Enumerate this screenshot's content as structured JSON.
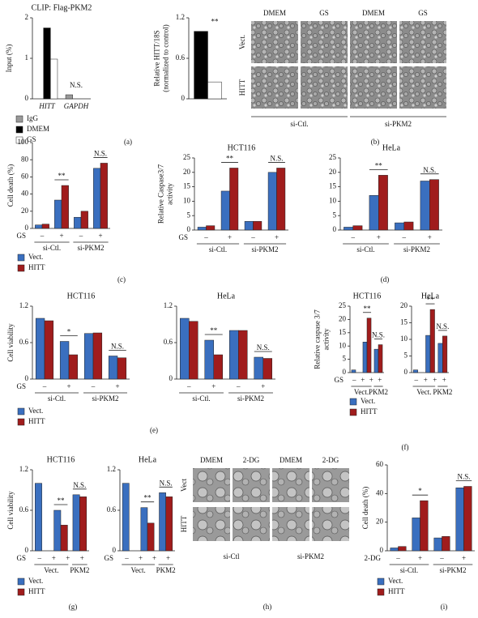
{
  "chart_data": [
    {
      "type": "bar",
      "title": "CLIP: Flag-PKM2",
      "ylabel": [
        "Input (%)"
      ],
      "categories": [
        "HITT",
        "GAPDH"
      ],
      "series": [
        {
          "name": "IgG",
          "color": "#999999",
          "values": [
            null,
            0.1
          ]
        },
        {
          "name": "DMEM",
          "color": "#000000",
          "values": [
            1.75,
            null
          ]
        },
        {
          "name": "GS",
          "color": "#ffffff",
          "values": [
            0.98,
            null
          ]
        }
      ],
      "ylim": [
        0,
        2
      ],
      "yticks": [
        0,
        1,
        2
      ],
      "annotations": [
        "N.S."
      ]
    },
    {
      "type": "bar",
      "ylabel": [
        "Relative HITT/18S",
        "(normalized to control)"
      ],
      "categories": [
        null
      ],
      "series": [
        {
          "color": "#000000",
          "values": [
            1.0
          ]
        },
        {
          "color": "#ffffff",
          "values": [
            0.25
          ]
        }
      ],
      "ylim": [
        0,
        1.2
      ],
      "yticks": [
        0,
        0.6,
        1.2
      ],
      "annotations": [
        "**"
      ]
    },
    {
      "type": "bar",
      "ylabel": [
        "Cell death (%)"
      ],
      "x_row_label": "GS",
      "categories": [
        "–",
        "+",
        "–",
        "+"
      ],
      "group_labels": [
        "si-Ctl.",
        "si-PKM2"
      ],
      "series": [
        {
          "name": "Vect.",
          "color": "#3a6fbf",
          "values": [
            4,
            33,
            13,
            70
          ]
        },
        {
          "name": "HITT",
          "color": "#a01c1c",
          "values": [
            5,
            50,
            20,
            76
          ]
        }
      ],
      "ylim": [
        0,
        100
      ],
      "yticks": [
        0,
        20,
        40,
        60,
        80,
        100
      ],
      "annotations": [
        "**",
        "N.S."
      ]
    },
    {
      "type": "bar",
      "title": "HCT116",
      "ylabel": [
        "Relative Caspase3/7",
        "activity"
      ],
      "x_row_label": "GS",
      "categories": [
        "–",
        "+",
        "–",
        "+"
      ],
      "group_labels": [
        "si-Ctl.",
        "si-PKM2"
      ],
      "series": [
        {
          "color": "#3a6fbf",
          "values": [
            1,
            13.5,
            3,
            20
          ]
        },
        {
          "color": "#a01c1c",
          "values": [
            1.5,
            21.5,
            3,
            21.5
          ]
        }
      ],
      "ylim": [
        0,
        25
      ],
      "yticks": [
        0,
        5,
        10,
        15,
        20,
        25
      ],
      "annotations": [
        "**",
        "N.S."
      ]
    },
    {
      "type": "bar",
      "title": "HeLa",
      "categories": [
        "–",
        "+",
        "–",
        "+"
      ],
      "group_labels": [
        "si-Ctl.",
        "si-PKM2"
      ],
      "series": [
        {
          "color": "#3a6fbf",
          "values": [
            1,
            12,
            2.5,
            17
          ]
        },
        {
          "color": "#a01c1c",
          "values": [
            1.5,
            19,
            2.8,
            17.5
          ]
        }
      ],
      "ylim": [
        0,
        25
      ],
      "yticks": [
        0,
        5,
        10,
        15,
        20,
        25
      ],
      "annotations": [
        "**",
        "N.S."
      ]
    },
    {
      "type": "bar",
      "title": "HCT116",
      "ylabel": [
        "Cell viability"
      ],
      "x_row_label": "GS",
      "categories": [
        "–",
        "+",
        "–",
        "+"
      ],
      "group_labels": [
        "si-Ctl.",
        "si-PKM2"
      ],
      "series": [
        {
          "name": "Vect.",
          "color": "#3a6fbf",
          "values": [
            1.0,
            0.62,
            0.75,
            0.38
          ]
        },
        {
          "name": "HITT",
          "color": "#a01c1c",
          "values": [
            0.96,
            0.4,
            0.76,
            0.35
          ]
        }
      ],
      "ylim": [
        0,
        1.2
      ],
      "yticks": [
        0,
        0.6,
        1.2
      ],
      "annotations": [
        "*",
        "N.S."
      ]
    },
    {
      "type": "bar",
      "title": "HeLa",
      "categories": [
        "–",
        "+",
        "–",
        "+"
      ],
      "group_labels": [
        "si-Ctl.",
        "si-PKM2"
      ],
      "series": [
        {
          "color": "#3a6fbf",
          "values": [
            1.0,
            0.64,
            0.8,
            0.36
          ]
        },
        {
          "color": "#a01c1c",
          "values": [
            0.95,
            0.4,
            0.8,
            0.34
          ]
        }
      ],
      "ylim": [
        0,
        1.2
      ],
      "yticks": [
        0,
        0.6,
        1.2
      ],
      "annotations": [
        "**",
        "N.S."
      ]
    },
    {
      "type": "bar",
      "title": "HCT116",
      "ylabel": [
        "Relative caspase 3/7",
        "activity"
      ],
      "x_row_label": "GS",
      "gs_signs": [
        "–",
        "+",
        "+",
        "+"
      ],
      "categories": [
        null,
        null,
        null
      ],
      "group_labels": [
        "Vect.",
        "PKM2"
      ],
      "series": [
        {
          "name": "Vect.",
          "color": "#3a6fbf",
          "values": [
            1,
            11.5,
            8.8
          ]
        },
        {
          "name": "HITT",
          "color": "#a01c1c",
          "values": [
            null,
            20.5,
            10.5
          ]
        }
      ],
      "ylim": [
        0,
        25
      ],
      "yticks": [
        0,
        5,
        10,
        15,
        20,
        25
      ],
      "annotations": [
        "**",
        "N.S."
      ]
    },
    {
      "type": "bar",
      "title": "HeLa",
      "gs_signs": [
        "–",
        "+",
        "+",
        "+"
      ],
      "categories": [
        null,
        null,
        null
      ],
      "group_labels": [
        "Vect.",
        "PKM2"
      ],
      "series": [
        {
          "color": "#3a6fbf",
          "values": [
            0.8,
            11.2,
            8.8
          ]
        },
        {
          "color": "#a01c1c",
          "values": [
            null,
            19,
            11
          ]
        }
      ],
      "ylim": [
        0,
        20
      ],
      "yticks": [
        0,
        5,
        10,
        15,
        20
      ],
      "annotations": [
        "**",
        "N.S."
      ]
    },
    {
      "type": "bar",
      "title": "HCT116",
      "ylabel": [
        "Cell viability"
      ],
      "x_row_label": "GS",
      "gs_signs": [
        "–",
        "+",
        "+",
        "+"
      ],
      "categories": [
        null,
        null,
        null
      ],
      "group_labels": [
        "Vect.",
        "PKM2"
      ],
      "series": [
        {
          "name": "Vect.",
          "color": "#3a6fbf",
          "values": [
            1.0,
            0.6,
            0.83
          ]
        },
        {
          "name": "HITT",
          "color": "#a01c1c",
          "values": [
            null,
            0.38,
            0.8
          ]
        }
      ],
      "ylim": [
        0,
        1.2
      ],
      "yticks": [
        0,
        0.6,
        1.2
      ],
      "annotations": [
        "**",
        "N.S."
      ]
    },
    {
      "type": "bar",
      "title": "HeLa",
      "x_row_label": "GS",
      "gs_signs": [
        "–",
        "+",
        "+",
        "+"
      ],
      "categories": [
        null,
        null,
        null
      ],
      "group_labels": [
        "Vect.",
        "PKM2"
      ],
      "series": [
        {
          "color": "#3a6fbf",
          "values": [
            1.0,
            0.64,
            0.86
          ]
        },
        {
          "color": "#a01c1c",
          "values": [
            null,
            0.41,
            0.8
          ]
        }
      ],
      "ylim": [
        0,
        1.2
      ],
      "yticks": [
        0,
        0.6,
        1.2
      ],
      "annotations": [
        "**",
        "N.S."
      ]
    },
    {
      "type": "bar",
      "ylabel": [
        "Cell death (%)"
      ],
      "x_row_label": "2-DG",
      "categories": [
        "–",
        "+",
        "–",
        "+"
      ],
      "group_labels": [
        "si-Ctl.",
        "si-PKM2"
      ],
      "series": [
        {
          "name": "Vect.",
          "color": "#3a6fbf",
          "values": [
            2,
            23,
            9,
            44
          ]
        },
        {
          "name": "HITT",
          "color": "#a01c1c",
          "values": [
            3,
            35,
            10,
            45
          ]
        }
      ],
      "ylim": [
        0,
        60
      ],
      "yticks": [
        0,
        20,
        40,
        60
      ],
      "annotations": [
        "*",
        "N.S."
      ]
    }
  ],
  "image_panels": [
    {
      "column_labels": [
        "DMEM",
        "GS",
        "DMEM",
        "GS"
      ],
      "row_labels": [
        "Vect.",
        "HITT"
      ],
      "group_labels": [
        "si-Ctl.",
        "si-PKM2"
      ]
    },
    {
      "column_labels": [
        "DMEM",
        "2-DG",
        "DMEM",
        "2-DG"
      ],
      "row_labels": [
        "Vect",
        "HITT"
      ],
      "group_labels": [
        "si-Ctl",
        "si-PKM2"
      ]
    }
  ],
  "panel_labels": [
    "(a)",
    "(b)",
    "(c)",
    "(d)",
    "(e)",
    "(f)",
    "(g)",
    "(h)",
    "(i)"
  ]
}
